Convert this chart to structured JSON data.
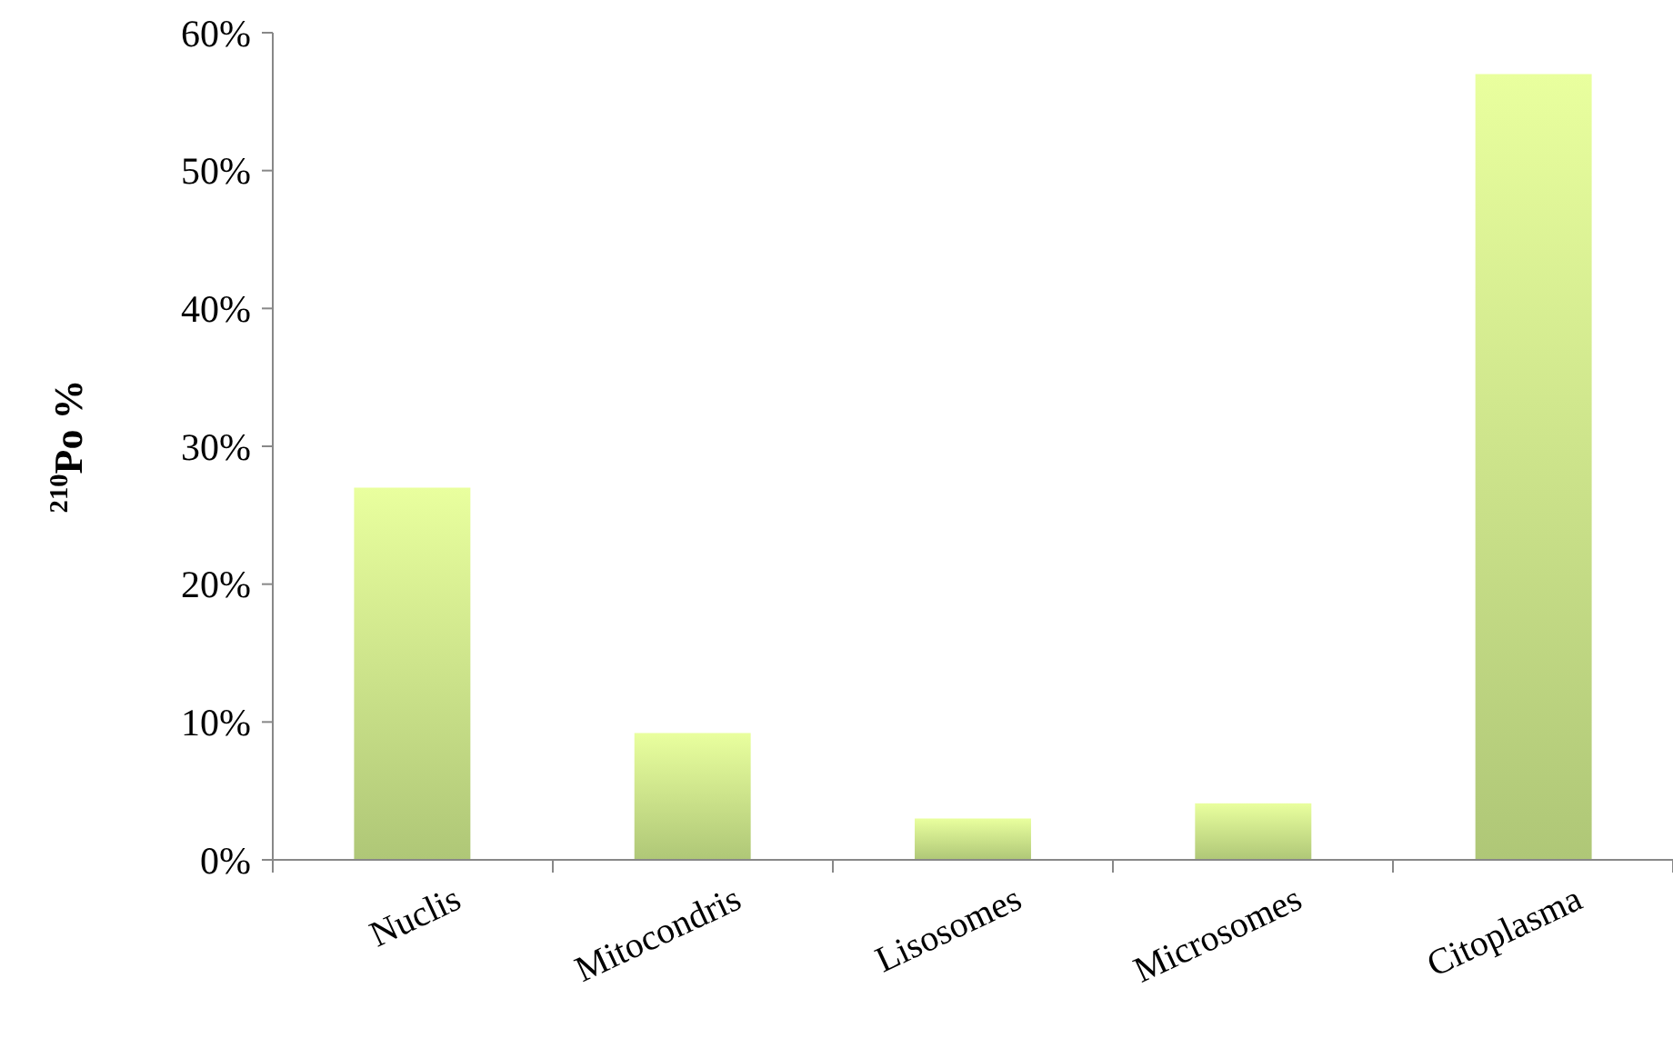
{
  "chart_data": {
    "type": "bar",
    "ylabel": "$^{210}$Po %",
    "categories": [
      "Nuclis",
      "Mitocondris",
      "Lisosomes",
      "Microsomes",
      "Citoplasma"
    ],
    "values": [
      27,
      9.2,
      3,
      4.1,
      57
    ],
    "color": "#c3de84",
    "ylim": [
      0,
      60
    ],
    "yticks": [
      {
        "value": 0,
        "label": "0%"
      },
      {
        "value": 10,
        "label": "10%"
      },
      {
        "value": 20,
        "label": "20%"
      },
      {
        "value": 30,
        "label": "30%"
      },
      {
        "value": 40,
        "label": "40%"
      },
      {
        "value": 50,
        "label": "50%"
      },
      {
        "value": 60,
        "label": "60%"
      }
    ],
    "grid": false
  }
}
